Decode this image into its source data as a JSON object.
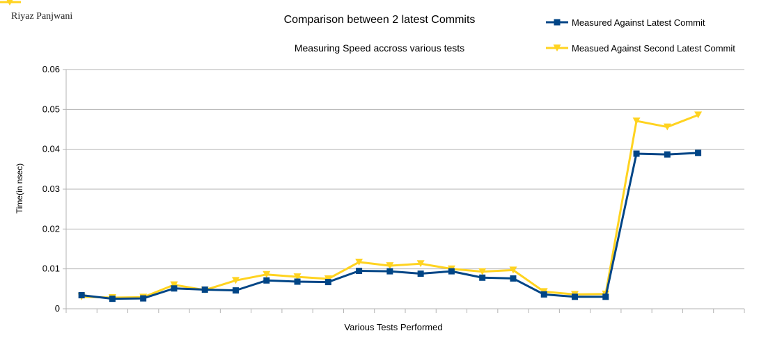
{
  "author_label": "Riyaz Panjwani",
  "colors": {
    "series1": "#004586",
    "series2": "#ffd320",
    "grid": "#b3b3b3",
    "axis": "#b3b3b3"
  },
  "chart_data": {
    "type": "line",
    "title": "Comparison between 2 latest Commits",
    "subtitle": "Measuring Speed accross various tests",
    "xlabel": "Various Tests Performed",
    "ylabel": "Time(in nsec)",
    "ylim": [
      0,
      0.06
    ],
    "yticks": [
      "0",
      "0.01",
      "0.02",
      "0.03",
      "0.04",
      "0.05",
      "0.06"
    ],
    "grid": true,
    "legend_position": "top-right",
    "x": [
      1,
      2,
      3,
      4,
      5,
      6,
      7,
      8,
      9,
      10,
      11,
      12,
      13,
      14,
      15,
      16,
      17,
      18,
      19,
      20,
      21,
      22
    ],
    "series": [
      {
        "name": "Measured Against Latest Commit",
        "marker": "square",
        "values": [
          0.0034,
          0.0025,
          0.0026,
          0.0051,
          0.0048,
          0.0046,
          0.0071,
          0.0068,
          0.0067,
          0.0095,
          0.0094,
          0.0088,
          0.0094,
          0.0078,
          0.0076,
          0.0036,
          0.003,
          0.003,
          0.0389,
          0.0387,
          0.0391,
          null
        ]
      },
      {
        "name": "Measued Against Second Latest Commit",
        "marker": "triangle-down",
        "values": [
          0.003,
          0.0028,
          0.0029,
          0.006,
          0.0047,
          0.0071,
          0.0086,
          0.008,
          0.0075,
          0.0117,
          0.0108,
          0.0113,
          0.01,
          0.0093,
          0.0097,
          0.0043,
          0.0036,
          0.0037,
          0.0471,
          0.0456,
          0.0486,
          null
        ]
      }
    ]
  }
}
